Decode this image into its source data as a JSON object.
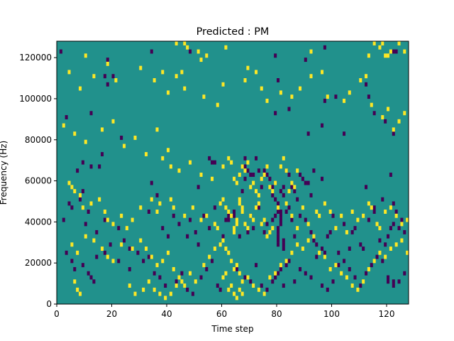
{
  "chart_data": {
    "type": "heatmap",
    "title": "Predicted : PM",
    "xlabel": "Time step",
    "ylabel": "Frequency (Hz)",
    "xlim": [
      0,
      128
    ],
    "ylim": [
      0,
      128000
    ],
    "x_ticks": [
      "0",
      "20",
      "40",
      "60",
      "80",
      "100",
      "120"
    ],
    "x_tick_values": [
      0,
      20,
      40,
      60,
      80,
      100,
      120
    ],
    "y_ticks": [
      "0",
      "20000",
      "40000",
      "60000",
      "80000",
      "100000",
      "120000"
    ],
    "y_tick_values": [
      0,
      20000,
      40000,
      60000,
      80000,
      100000,
      120000
    ],
    "grid": false,
    "n_time_steps": 128,
    "n_freq_bins": 64,
    "freq_bin_hz": 2000,
    "colormap": {
      "-1": "#440154",
      "0": "#21918c",
      "1": "#fde725"
    },
    "background_value": 0,
    "low_cells": [
      [
        1,
        61
      ],
      [
        18,
        59
      ],
      [
        34,
        61
      ],
      [
        48,
        61
      ],
      [
        79,
        60
      ],
      [
        90,
        59
      ],
      [
        97,
        62
      ],
      [
        122,
        61
      ],
      [
        123,
        61
      ],
      [
        17,
        55
      ],
      [
        80,
        54
      ],
      [
        18,
        53
      ],
      [
        20,
        55
      ],
      [
        112,
        53
      ],
      [
        113,
        50
      ],
      [
        97,
        49
      ],
      [
        101,
        50
      ],
      [
        3,
        45
      ],
      [
        23,
        40
      ],
      [
        16,
        36
      ],
      [
        12,
        46
      ],
      [
        115,
        46
      ],
      [
        122,
        41
      ],
      [
        119,
        44
      ],
      [
        12,
        33
      ],
      [
        15,
        33
      ],
      [
        96,
        43
      ],
      [
        104,
        41
      ],
      [
        79,
        46
      ],
      [
        84,
        47
      ],
      [
        91,
        41
      ],
      [
        9,
        34
      ],
      [
        4,
        24
      ],
      [
        7,
        32
      ],
      [
        9,
        27
      ],
      [
        8,
        25
      ],
      [
        34,
        29
      ],
      [
        36,
        26
      ],
      [
        51,
        28
      ],
      [
        78,
        28
      ],
      [
        79,
        29
      ],
      [
        82,
        28
      ],
      [
        93,
        32
      ],
      [
        96,
        30
      ],
      [
        121,
        31
      ],
      [
        122,
        24
      ],
      [
        61,
        20
      ],
      [
        62,
        21
      ],
      [
        64,
        21
      ],
      [
        80,
        22
      ],
      [
        81,
        22
      ],
      [
        112,
        28
      ],
      [
        115,
        23
      ],
      [
        118,
        25
      ],
      [
        55,
        35
      ],
      [
        56,
        34
      ],
      [
        57,
        34
      ],
      [
        67,
        27
      ],
      [
        68,
        30
      ],
      [
        68,
        33
      ],
      [
        68,
        35
      ],
      [
        69,
        32
      ],
      [
        70,
        31
      ],
      [
        71,
        31
      ],
      [
        72,
        35
      ],
      [
        73,
        32
      ],
      [
        74,
        28
      ],
      [
        75,
        32
      ],
      [
        76,
        31
      ],
      [
        77,
        30
      ],
      [
        78,
        26
      ],
      [
        79,
        25
      ],
      [
        80,
        24
      ],
      [
        81,
        27
      ],
      [
        82,
        26
      ],
      [
        83,
        32
      ],
      [
        84,
        31
      ],
      [
        85,
        28
      ],
      [
        86,
        27
      ],
      [
        87,
        25
      ],
      [
        88,
        31
      ],
      [
        89,
        30
      ],
      [
        90,
        29
      ],
      [
        91,
        29
      ],
      [
        92,
        26
      ],
      [
        2,
        20
      ],
      [
        5,
        23
      ],
      [
        11,
        22
      ],
      [
        10,
        19
      ],
      [
        14,
        17
      ],
      [
        17,
        20
      ],
      [
        22,
        18
      ],
      [
        24,
        15
      ],
      [
        26,
        13
      ],
      [
        29,
        12
      ],
      [
        33,
        22
      ],
      [
        38,
        18
      ],
      [
        40,
        16
      ],
      [
        42,
        21
      ],
      [
        44,
        19
      ],
      [
        47,
        16
      ],
      [
        48,
        20
      ],
      [
        50,
        17
      ],
      [
        51,
        14
      ],
      [
        53,
        21
      ],
      [
        55,
        18
      ],
      [
        57,
        23
      ],
      [
        60,
        16
      ],
      [
        62,
        20
      ],
      [
        64,
        22
      ],
      [
        66,
        16
      ],
      [
        69,
        17
      ],
      [
        70,
        21
      ],
      [
        71,
        18
      ],
      [
        73,
        23
      ],
      [
        75,
        17
      ],
      [
        76,
        19
      ],
      [
        78,
        20
      ],
      [
        79,
        21
      ],
      [
        80,
        14
      ],
      [
        80,
        15
      ],
      [
        80,
        16
      ],
      [
        80,
        17
      ],
      [
        80,
        18
      ],
      [
        81,
        19
      ],
      [
        81,
        20
      ],
      [
        81,
        21
      ],
      [
        82,
        13
      ],
      [
        82,
        14
      ],
      [
        82,
        15
      ],
      [
        83,
        22
      ],
      [
        84,
        23
      ],
      [
        85,
        20
      ],
      [
        86,
        16
      ],
      [
        88,
        21
      ],
      [
        90,
        20
      ],
      [
        92,
        17
      ],
      [
        93,
        15
      ],
      [
        94,
        14
      ],
      [
        96,
        13
      ],
      [
        97,
        12
      ],
      [
        98,
        16
      ],
      [
        99,
        17
      ],
      [
        100,
        21
      ],
      [
        102,
        12
      ],
      [
        104,
        19
      ],
      [
        106,
        13
      ],
      [
        107,
        17
      ],
      [
        108,
        18
      ],
      [
        110,
        14
      ],
      [
        111,
        13
      ],
      [
        113,
        20
      ],
      [
        115,
        22
      ],
      [
        117,
        15
      ],
      [
        119,
        14
      ],
      [
        120,
        16
      ],
      [
        121,
        18
      ],
      [
        122,
        19
      ],
      [
        123,
        22
      ],
      [
        124,
        18
      ],
      [
        125,
        20
      ],
      [
        126,
        17
      ],
      [
        3,
        12
      ],
      [
        5,
        10
      ],
      [
        6,
        8
      ],
      [
        9,
        9
      ],
      [
        11,
        7
      ],
      [
        12,
        6
      ],
      [
        13,
        5
      ],
      [
        14,
        11
      ],
      [
        17,
        12
      ],
      [
        19,
        14
      ],
      [
        22,
        10
      ],
      [
        26,
        8
      ],
      [
        31,
        10
      ],
      [
        33,
        11
      ],
      [
        35,
        7
      ],
      [
        37,
        6
      ],
      [
        39,
        4
      ],
      [
        43,
        5
      ],
      [
        45,
        7
      ],
      [
        47,
        3
      ],
      [
        49,
        2
      ],
      [
        52,
        6
      ],
      [
        54,
        8
      ],
      [
        56,
        10
      ],
      [
        58,
        4
      ],
      [
        59,
        3
      ],
      [
        65,
        8
      ],
      [
        68,
        6
      ],
      [
        70,
        5
      ],
      [
        72,
        9
      ],
      [
        74,
        4
      ],
      [
        76,
        3
      ],
      [
        78,
        5
      ],
      [
        79,
        6
      ],
      [
        80,
        7
      ],
      [
        81,
        8
      ],
      [
        82,
        4
      ],
      [
        83,
        9
      ],
      [
        84,
        10
      ],
      [
        86,
        5
      ],
      [
        88,
        8
      ],
      [
        90,
        7
      ],
      [
        92,
        6
      ],
      [
        94,
        11
      ],
      [
        96,
        4
      ],
      [
        98,
        3
      ],
      [
        100,
        5
      ],
      [
        102,
        9
      ],
      [
        104,
        10
      ],
      [
        106,
        8
      ],
      [
        108,
        6
      ],
      [
        110,
        4
      ],
      [
        112,
        7
      ],
      [
        114,
        9
      ],
      [
        116,
        11
      ],
      [
        118,
        10
      ],
      [
        120,
        6
      ],
      [
        122,
        4
      ],
      [
        124,
        5
      ],
      [
        126,
        7
      ],
      [
        120,
        5
      ],
      [
        122,
        5
      ]
    ],
    "high_cells": [
      [
        10,
        60
      ],
      [
        43,
        63
      ],
      [
        46,
        63
      ],
      [
        47,
        62
      ],
      [
        51,
        61
      ],
      [
        52,
        59
      ],
      [
        54,
        60
      ],
      [
        61,
        62
      ],
      [
        69,
        57
      ],
      [
        92,
        61
      ],
      [
        113,
        60
      ],
      [
        115,
        63
      ],
      [
        117,
        62
      ],
      [
        118,
        63
      ],
      [
        119,
        60
      ],
      [
        120,
        60
      ],
      [
        121,
        61
      ],
      [
        124,
        63
      ],
      [
        126,
        61
      ],
      [
        4,
        56
      ],
      [
        8,
        52
      ],
      [
        13,
        55
      ],
      [
        18,
        58
      ],
      [
        21,
        54
      ],
      [
        30,
        57
      ],
      [
        35,
        54
      ],
      [
        38,
        56
      ],
      [
        40,
        51
      ],
      [
        43,
        55
      ],
      [
        45,
        56
      ],
      [
        46,
        52
      ],
      [
        53,
        50
      ],
      [
        58,
        48
      ],
      [
        60,
        53
      ],
      [
        68,
        54
      ],
      [
        72,
        56
      ],
      [
        74,
        52
      ],
      [
        76,
        49
      ],
      [
        81,
        51
      ],
      [
        85,
        50
      ],
      [
        88,
        52
      ],
      [
        92,
        55
      ],
      [
        96,
        56
      ],
      [
        98,
        50
      ],
      [
        104,
        49
      ],
      [
        106,
        51
      ],
      [
        110,
        54
      ],
      [
        112,
        55
      ],
      [
        114,
        48
      ],
      [
        118,
        45
      ],
      [
        120,
        47
      ],
      [
        122,
        42
      ],
      [
        124,
        44
      ],
      [
        126,
        46
      ],
      [
        2,
        43
      ],
      [
        6,
        41
      ],
      [
        10,
        39
      ],
      [
        16,
        42
      ],
      [
        20,
        44
      ],
      [
        24,
        38
      ],
      [
        28,
        40
      ],
      [
        32,
        36
      ],
      [
        36,
        42
      ],
      [
        38,
        35
      ],
      [
        40,
        37
      ],
      [
        41,
        33
      ],
      [
        44,
        32
      ],
      [
        48,
        34
      ],
      [
        52,
        31
      ],
      [
        56,
        30
      ],
      [
        60,
        33
      ],
      [
        62,
        35
      ],
      [
        63,
        34
      ],
      [
        64,
        30
      ],
      [
        65,
        29
      ],
      [
        66,
        31
      ],
      [
        67,
        33
      ],
      [
        68,
        32
      ],
      [
        69,
        34
      ],
      [
        70,
        28
      ],
      [
        71,
        29
      ],
      [
        72,
        27
      ],
      [
        73,
        26
      ],
      [
        74,
        30
      ],
      [
        75,
        31
      ],
      [
        76,
        33
      ],
      [
        77,
        28
      ],
      [
        78,
        27
      ],
      [
        79,
        29
      ],
      [
        81,
        33
      ],
      [
        82,
        35
      ],
      [
        83,
        32
      ],
      [
        84,
        27
      ],
      [
        85,
        29
      ],
      [
        86,
        28
      ],
      [
        87,
        32
      ],
      [
        4,
        29
      ],
      [
        5,
        28
      ],
      [
        6,
        27
      ],
      [
        8,
        26
      ],
      [
        9,
        23
      ],
      [
        12,
        24
      ],
      [
        15,
        25
      ],
      [
        17,
        22
      ],
      [
        18,
        20
      ],
      [
        20,
        19
      ],
      [
        23,
        21
      ],
      [
        25,
        18
      ],
      [
        27,
        20
      ],
      [
        30,
        23
      ],
      [
        34,
        25
      ],
      [
        36,
        22
      ],
      [
        37,
        24
      ],
      [
        41,
        25
      ],
      [
        42,
        23
      ],
      [
        46,
        21
      ],
      [
        49,
        23
      ],
      [
        52,
        20
      ],
      [
        54,
        21
      ],
      [
        57,
        19
      ],
      [
        58,
        18
      ],
      [
        59,
        24
      ],
      [
        60,
        25
      ],
      [
        61,
        23
      ],
      [
        62,
        22
      ],
      [
        63,
        21
      ],
      [
        64,
        17
      ],
      [
        64,
        18
      ],
      [
        65,
        19
      ],
      [
        65,
        20
      ],
      [
        66,
        24
      ],
      [
        66,
        25
      ],
      [
        67,
        22
      ],
      [
        67,
        23
      ],
      [
        68,
        19
      ],
      [
        69,
        18
      ],
      [
        70,
        21
      ],
      [
        71,
        20
      ],
      [
        72,
        23
      ],
      [
        73,
        24
      ],
      [
        74,
        19
      ],
      [
        75,
        20
      ],
      [
        76,
        16
      ],
      [
        77,
        17
      ],
      [
        78,
        18
      ],
      [
        80,
        23
      ],
      [
        83,
        24
      ],
      [
        85,
        21
      ],
      [
        87,
        18
      ],
      [
        89,
        23
      ],
      [
        91,
        19
      ],
      [
        94,
        22
      ],
      [
        95,
        21
      ],
      [
        97,
        24
      ],
      [
        99,
        22
      ],
      [
        101,
        18
      ],
      [
        103,
        21
      ],
      [
        105,
        17
      ],
      [
        107,
        22
      ],
      [
        109,
        20
      ],
      [
        111,
        21
      ],
      [
        113,
        24
      ],
      [
        114,
        23
      ],
      [
        116,
        19
      ],
      [
        117,
        18
      ],
      [
        119,
        22
      ],
      [
        121,
        23
      ],
      [
        123,
        21
      ],
      [
        125,
        19
      ],
      [
        127,
        20
      ],
      [
        5,
        14
      ],
      [
        7,
        12
      ],
      [
        10,
        16
      ],
      [
        13,
        15
      ],
      [
        16,
        13
      ],
      [
        18,
        11
      ],
      [
        20,
        10
      ],
      [
        23,
        14
      ],
      [
        27,
        13
      ],
      [
        30,
        15
      ],
      [
        32,
        13
      ],
      [
        34,
        11
      ],
      [
        36,
        9
      ],
      [
        38,
        10
      ],
      [
        40,
        12
      ],
      [
        42,
        8
      ],
      [
        44,
        6
      ],
      [
        46,
        4
      ],
      [
        48,
        7
      ],
      [
        50,
        5
      ],
      [
        53,
        9
      ],
      [
        55,
        11
      ],
      [
        57,
        13
      ],
      [
        59,
        14
      ],
      [
        60,
        15
      ],
      [
        61,
        13
      ],
      [
        62,
        12
      ],
      [
        63,
        10
      ],
      [
        64,
        8
      ],
      [
        65,
        9
      ],
      [
        66,
        7
      ],
      [
        67,
        5
      ],
      [
        69,
        6
      ],
      [
        71,
        4
      ],
      [
        73,
        3
      ],
      [
        75,
        2
      ],
      [
        77,
        6
      ],
      [
        79,
        7
      ],
      [
        81,
        9
      ],
      [
        83,
        10
      ],
      [
        85,
        12
      ],
      [
        87,
        14
      ],
      [
        89,
        13
      ],
      [
        91,
        15
      ],
      [
        93,
        16
      ],
      [
        95,
        12
      ],
      [
        97,
        11
      ],
      [
        99,
        8
      ],
      [
        101,
        9
      ],
      [
        103,
        7
      ],
      [
        105,
        6
      ],
      [
        107,
        4
      ],
      [
        109,
        3
      ],
      [
        111,
        5
      ],
      [
        113,
        8
      ],
      [
        115,
        10
      ],
      [
        117,
        12
      ],
      [
        119,
        11
      ],
      [
        121,
        13
      ],
      [
        123,
        14
      ],
      [
        125,
        15
      ],
      [
        127,
        12
      ],
      [
        6,
        5
      ],
      [
        7,
        3
      ],
      [
        8,
        2
      ],
      [
        26,
        4
      ],
      [
        28,
        2
      ],
      [
        31,
        3
      ],
      [
        33,
        5
      ],
      [
        35,
        3
      ],
      [
        37,
        2
      ],
      [
        39,
        1
      ],
      [
        41,
        2
      ],
      [
        43,
        4
      ],
      [
        45,
        5
      ],
      [
        60,
        6
      ],
      [
        61,
        7
      ],
      [
        62,
        3
      ],
      [
        63,
        4
      ],
      [
        64,
        2
      ],
      [
        65,
        1
      ],
      [
        66,
        3
      ],
      [
        67,
        2
      ]
    ]
  }
}
